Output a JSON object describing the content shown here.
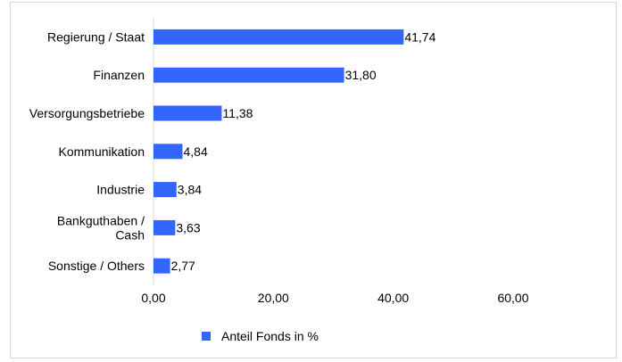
{
  "chart_data": {
    "type": "bar",
    "orientation": "horizontal",
    "categories": [
      "Regierung / Staat",
      "Finanzen",
      "Versorgungsbetriebe",
      "Kommunikation",
      "Industrie",
      "Bankguthaben / Cash",
      "Sonstige / Others"
    ],
    "category_lines": [
      [
        "Regierung / Staat"
      ],
      [
        "Finanzen"
      ],
      [
        "Versorgungsbetriebe"
      ],
      [
        "Kommunikation"
      ],
      [
        "Industrie"
      ],
      [
        "Bankguthaben /",
        "Cash"
      ],
      [
        "Sonstige / Others"
      ]
    ],
    "series": [
      {
        "name": "Anteil Fonds in %",
        "color": "#3366ff",
        "values": [
          41.74,
          31.8,
          11.38,
          4.84,
          3.84,
          3.63,
          2.77
        ],
        "value_labels": [
          "41,74",
          "31,80",
          "11,38",
          "4,84",
          "3,84",
          "3,63",
          "2,77"
        ]
      }
    ],
    "xlim": [
      0,
      60
    ],
    "x_ticks": [
      0,
      20,
      40,
      60
    ],
    "x_tick_labels": [
      "0,00",
      "20,00",
      "40,00",
      "60,00"
    ],
    "xlabel": "",
    "ylabel": "",
    "title": "",
    "grid": false,
    "legend_position": "bottom"
  }
}
